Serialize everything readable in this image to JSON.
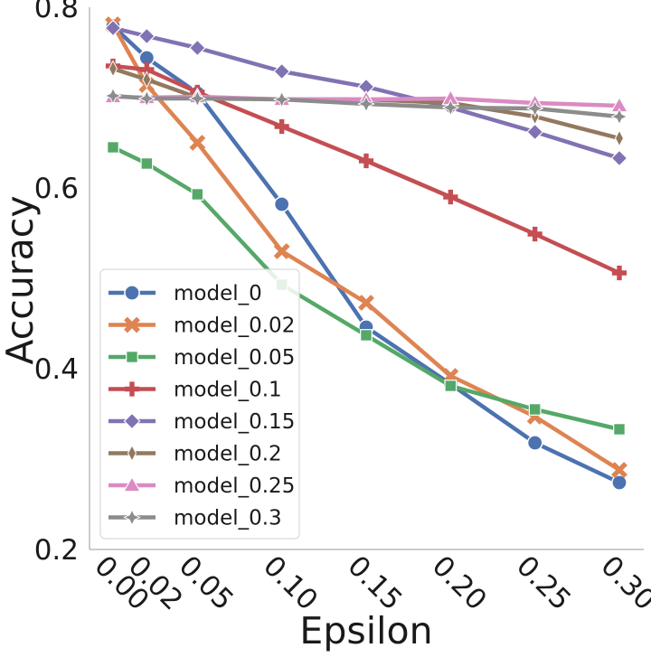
{
  "chart_data": {
    "type": "line",
    "title": "",
    "xlabel": "Epsilon",
    "ylabel": "Accuracy",
    "xlim": [
      0.0,
      0.3
    ],
    "ylim": [
      0.2,
      0.8
    ],
    "x": [
      0.0,
      0.02,
      0.05,
      0.1,
      0.15,
      0.2,
      0.25,
      0.3
    ],
    "x_tick_labels": [
      "0.00",
      "0.02",
      "0.05",
      "0.10",
      "0.15",
      "0.20",
      "0.25",
      "0.30"
    ],
    "y_ticks": [
      0.2,
      0.4,
      0.6,
      0.8
    ],
    "y_tick_labels": [
      "0.2",
      "0.4",
      "0.6",
      "0.8"
    ],
    "grid": false,
    "legend_position": "lower-left",
    "series": [
      {
        "name": "model_0",
        "color": "#4c72b0",
        "marker": "circle",
        "values": [
          0.779,
          0.744,
          0.705,
          0.582,
          0.446,
          0.383,
          0.318,
          0.274
        ]
      },
      {
        "name": "model_0.02",
        "color": "#dd8452",
        "marker": "x",
        "values": [
          0.781,
          0.714,
          0.65,
          0.53,
          0.473,
          0.392,
          0.347,
          0.288
        ]
      },
      {
        "name": "model_0.05",
        "color": "#55a868",
        "marker": "square",
        "values": [
          0.645,
          0.627,
          0.593,
          0.493,
          0.437,
          0.381,
          0.355,
          0.333
        ]
      },
      {
        "name": "model_0.1",
        "color": "#c44e52",
        "marker": "plus",
        "values": [
          0.735,
          0.731,
          0.706,
          0.668,
          0.63,
          0.59,
          0.549,
          0.506
        ]
      },
      {
        "name": "model_0.15",
        "color": "#8172b3",
        "marker": "diamond",
        "values": [
          0.777,
          0.768,
          0.755,
          0.729,
          0.712,
          0.689,
          0.662,
          0.633
        ]
      },
      {
        "name": "model_0.2",
        "color": "#937860",
        "marker": "thin-diamond",
        "values": [
          0.732,
          0.72,
          0.7,
          0.698,
          0.698,
          0.694,
          0.679,
          0.655
        ]
      },
      {
        "name": "model_0.25",
        "color": "#da8bc3",
        "marker": "triangle",
        "values": [
          0.701,
          0.7,
          0.701,
          0.698,
          0.698,
          0.699,
          0.694,
          0.691
        ]
      },
      {
        "name": "model_0.3",
        "color": "#8c8c8c",
        "marker": "star",
        "values": [
          0.702,
          0.699,
          0.699,
          0.698,
          0.693,
          0.689,
          0.688,
          0.679
        ]
      }
    ]
  }
}
